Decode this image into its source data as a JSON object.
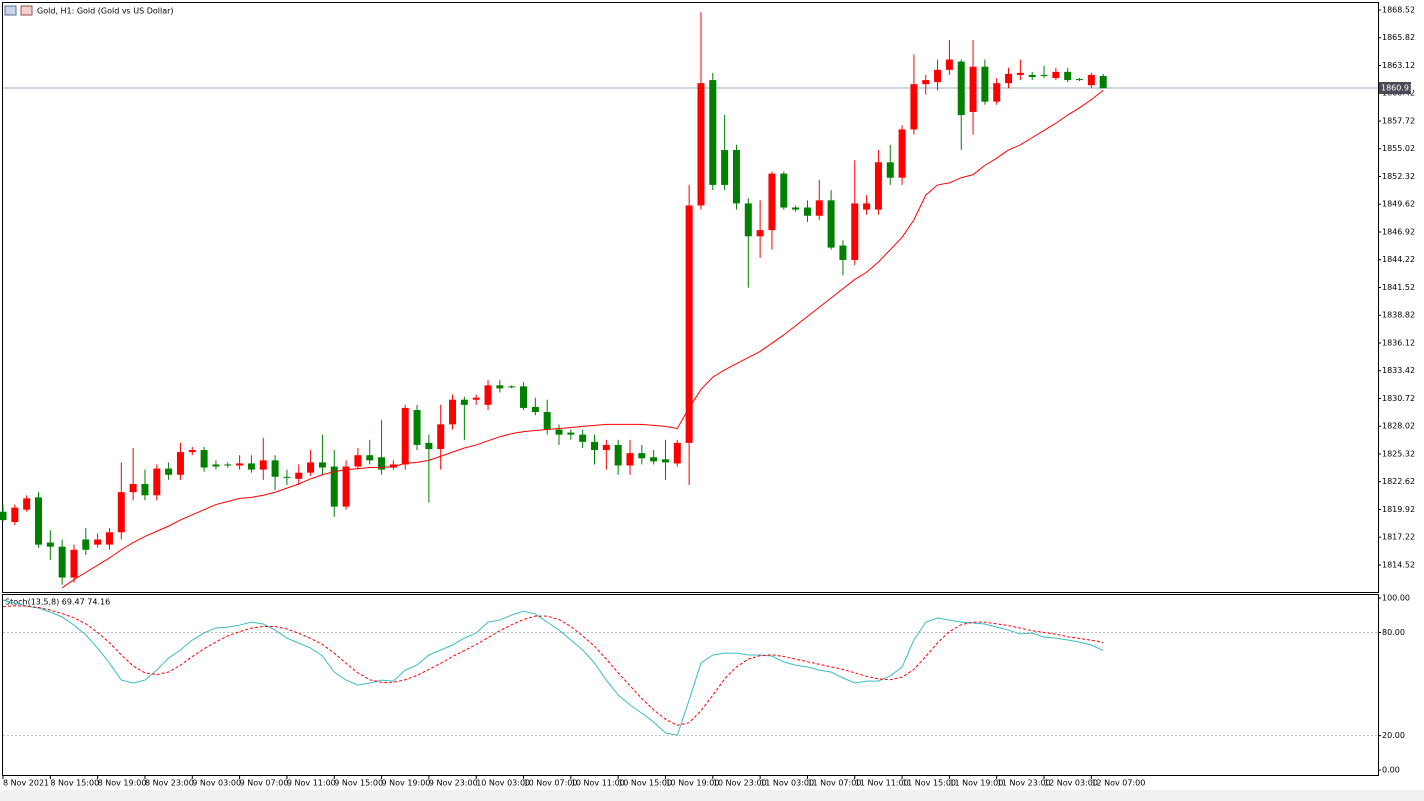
{
  "chart_data": [
    {
      "type": "candlestick",
      "title": "Gold, H1:  Gold (Gold vs US Dollar)",
      "x": [
        "8 Nov 2021",
        null,
        null,
        null,
        "8 Nov 15:00",
        null,
        null,
        null,
        "8 Nov 19:00",
        null,
        null,
        null,
        "8 Nov 23:00",
        null,
        null,
        null,
        "9 Nov 03:00",
        null,
        null,
        null,
        "9 Nov 07:00",
        null,
        null,
        null,
        "9 Nov 11:00",
        null,
        null,
        null,
        "9 Nov 15:00",
        null,
        null,
        null,
        "9 Nov 19:00",
        null,
        null,
        null,
        "9 Nov 23:00",
        null,
        null,
        null,
        "10 Nov 03:00",
        null,
        null,
        null,
        "10 Nov 07:00",
        null,
        null,
        null,
        "10 Nov 11:00",
        null,
        null,
        null,
        "10 Nov 15:00",
        null,
        null,
        null,
        "10 Nov 19:00",
        null,
        null,
        null,
        "10 Nov 23:00",
        null,
        null,
        null,
        "11 Nov 03:00",
        null,
        null,
        null,
        "11 Nov 07:00",
        null,
        null,
        null,
        "11 Nov 11:00",
        null,
        null,
        null,
        "11 Nov 15:00",
        null,
        null,
        null,
        "11 Nov 19:00",
        null,
        null,
        null,
        "11 Nov 23:00",
        null,
        null,
        null,
        "12 Nov 03:00",
        null,
        null,
        null,
        "12 Nov 07:00",
        null
      ],
      "open": [
        1819.7,
        1818.7,
        1819.9,
        1821.1,
        1816.7,
        1816.3,
        1813.3,
        1817.0,
        1816.5,
        1816.5,
        1817.7,
        1821.6,
        1822.4,
        1821.3,
        1823.9,
        1823.3,
        1825.5,
        1825.7,
        1824.3,
        1824.3,
        1824.2,
        1824.4,
        1823.8,
        1824.7,
        1823.1,
        1822.9,
        1823.5,
        1824.5,
        1824.1,
        1820.2,
        1824.1,
        1825.2,
        1825.0,
        1824.0,
        1824.3,
        1829.6,
        1826.4,
        1825.8,
        1828.2,
        1830.6,
        1830.6,
        1830.1,
        1832.0,
        1831.9,
        1831.9,
        1829.9,
        1829.4,
        1827.7,
        1827.4,
        1827.2,
        1826.5,
        1825.7,
        1826.2,
        1824.2,
        1825.4,
        1825.0,
        1824.8,
        1824.4,
        1826.4,
        1849.5,
        1861.7,
        1854.9,
        1854.9,
        1849.7,
        1846.5,
        1847.1,
        1852.6,
        1849.3,
        1849.3,
        1848.5,
        1850.0,
        1845.6,
        1844.2,
        1849.1,
        1849.1,
        1853.7,
        1852.2,
        1856.9,
        1861.3,
        1861.5,
        1862.7,
        1863.5,
        1858.6,
        1863.0,
        1859.6,
        1861.4,
        1862.2,
        1862.2,
        1862.2,
        1861.9,
        1862.5,
        1861.8,
        1861.2,
        1862.1
      ],
      "high": [
        1820.4,
        1820.4,
        1821.3,
        1821.6,
        1817.9,
        1817.0,
        1816.5,
        1818.1,
        1817.6,
        1818.1,
        1824.5,
        1825.9,
        1823.8,
        1824.3,
        1824.5,
        1826.4,
        1826.0,
        1826.0,
        1824.7,
        1824.5,
        1825.2,
        1825.2,
        1826.9,
        1825.2,
        1823.8,
        1824.3,
        1825.7,
        1827.2,
        1825.7,
        1824.7,
        1825.9,
        1826.7,
        1828.6,
        1824.7,
        1830.1,
        1830.1,
        1827.2,
        1830.1,
        1831.1,
        1830.9,
        1831.1,
        1832.5,
        1832.5,
        1832.0,
        1832.3,
        1830.8,
        1830.6,
        1828.2,
        1827.7,
        1827.7,
        1827.2,
        1826.7,
        1826.7,
        1826.7,
        1826.2,
        1825.7,
        1826.7,
        1826.7,
        1851.5,
        1868.3,
        1862.4,
        1858.3,
        1855.4,
        1850.2,
        1850.0,
        1852.8,
        1852.8,
        1849.5,
        1850.0,
        1852.0,
        1851.0,
        1846.1,
        1853.9,
        1850.5,
        1854.9,
        1855.4,
        1857.3,
        1864.2,
        1862.2,
        1863.7,
        1865.6,
        1863.7,
        1865.6,
        1863.7,
        1861.9,
        1862.9,
        1863.7,
        1862.5,
        1863.1,
        1862.9,
        1862.9,
        1861.9,
        1862.4,
        1862.3
      ],
      "low": [
        1818.7,
        1818.4,
        1819.7,
        1816.2,
        1815.0,
        1812.6,
        1812.8,
        1815.5,
        1816.2,
        1816.0,
        1817.0,
        1820.8,
        1820.8,
        1820.8,
        1822.8,
        1822.8,
        1825.2,
        1823.6,
        1823.8,
        1824.0,
        1823.8,
        1823.5,
        1822.8,
        1821.8,
        1822.3,
        1822.3,
        1823.2,
        1823.3,
        1819.2,
        1819.9,
        1823.8,
        1824.3,
        1823.3,
        1823.8,
        1823.8,
        1825.7,
        1820.6,
        1823.8,
        1827.7,
        1826.7,
        1830.1,
        1829.6,
        1831.3,
        1831.7,
        1829.6,
        1829.1,
        1827.2,
        1826.2,
        1826.7,
        1825.9,
        1824.3,
        1823.8,
        1823.3,
        1823.3,
        1824.3,
        1824.3,
        1822.8,
        1824.1,
        1822.3,
        1849.1,
        1851.0,
        1851.0,
        1849.1,
        1841.5,
        1844.4,
        1845.2,
        1849.1,
        1848.9,
        1847.9,
        1848.1,
        1845.2,
        1842.7,
        1843.7,
        1848.6,
        1848.6,
        1851.5,
        1851.5,
        1856.4,
        1860.3,
        1860.7,
        1862.2,
        1854.9,
        1856.4,
        1859.3,
        1859.3,
        1860.9,
        1861.7,
        1861.7,
        1861.9,
        1861.7,
        1861.5,
        1861.6,
        1860.9,
        1860.9
      ],
      "close": [
        1818.9,
        1820.1,
        1821.0,
        1816.5,
        1816.3,
        1813.3,
        1816.0,
        1816.0,
        1817.0,
        1817.7,
        1821.6,
        1822.4,
        1821.3,
        1823.9,
        1823.3,
        1825.5,
        1825.7,
        1824.0,
        1824.1,
        1824.2,
        1824.4,
        1823.8,
        1824.7,
        1823.1,
        1823.0,
        1823.5,
        1824.5,
        1824.0,
        1820.2,
        1824.1,
        1825.2,
        1824.7,
        1823.8,
        1824.3,
        1829.8,
        1826.2,
        1825.8,
        1828.2,
        1830.6,
        1830.1,
        1830.8,
        1832.0,
        1831.7,
        1831.8,
        1829.8,
        1829.4,
        1827.7,
        1827.2,
        1827.2,
        1826.5,
        1825.7,
        1826.2,
        1824.2,
        1825.4,
        1824.9,
        1824.6,
        1824.5,
        1826.4,
        1849.5,
        1861.4,
        1851.5,
        1851.5,
        1849.7,
        1846.5,
        1847.1,
        1852.6,
        1849.3,
        1849.1,
        1848.5,
        1850.0,
        1845.4,
        1844.2,
        1849.7,
        1849.7,
        1853.7,
        1852.2,
        1856.9,
        1861.3,
        1861.7,
        1862.7,
        1863.7,
        1858.3,
        1863.0,
        1859.6,
        1861.4,
        1862.3,
        1862.4,
        1862.0,
        1862.1,
        1862.5,
        1861.7,
        1861.7,
        1862.2,
        1860.9
      ],
      "up_color": "#ff0000",
      "down_color": "#008000",
      "series": [
        {
          "color": "#ff0000",
          "values": [
            null,
            null,
            null,
            null,
            null,
            1812.3,
            1813.1,
            1813.8,
            1814.5,
            1815.2,
            1816.0,
            1816.7,
            1817.3,
            1817.8,
            1818.3,
            1818.9,
            1819.4,
            1819.9,
            1820.4,
            1820.7,
            1821.0,
            1821.1,
            1821.3,
            1821.6,
            1822.0,
            1822.4,
            1822.9,
            1823.3,
            1823.6,
            1823.8,
            1823.9,
            1824.0,
            1824.0,
            1824.1,
            1824.4,
            1824.5,
            1824.7,
            1825.1,
            1825.5,
            1825.9,
            1826.2,
            1826.6,
            1827.0,
            1827.3,
            1827.5,
            1827.6,
            1827.7,
            1827.8,
            1827.9,
            1828.0,
            1828.1,
            1828.2,
            1828.2,
            1828.2,
            1828.2,
            1828.1,
            1828.0,
            1827.8,
            1829.8,
            1831.6,
            1832.8,
            1833.5,
            1834.1,
            1834.7,
            1835.3,
            1836.1,
            1836.9,
            1837.8,
            1838.7,
            1839.6,
            1840.5,
            1841.4,
            1842.3,
            1843.0,
            1844.0,
            1845.2,
            1846.4,
            1848.1,
            1850.5,
            1851.5,
            1851.7,
            1852.2,
            1852.5,
            1853.4,
            1854.1,
            1854.9,
            1855.4,
            1856.1,
            1856.8,
            1857.5,
            1858.3,
            1859.0,
            1859.8,
            1860.7
          ]
        }
      ],
      "last_price": 1860.93,
      "ylim": [
        1811.89,
        1869.2
      ],
      "yticks": [
        1868.52,
        1865.82,
        1863.12,
        1860.42,
        1857.72,
        1855.02,
        1852.32,
        1849.62,
        1846.92,
        1844.22,
        1841.52,
        1838.82,
        1836.12,
        1833.42,
        1830.72,
        1828.02,
        1825.32,
        1822.62,
        1819.92,
        1817.22,
        1814.52
      ]
    },
    {
      "type": "line",
      "indicator_label": "Stoch(13,5,8) 69.47 74.16",
      "series": [
        {
          "color": "#3cbcc8",
          "dashed": false,
          "values": [
            98.8,
            97.1,
            95.3,
            94.2,
            91.9,
            89.0,
            84.3,
            78.5,
            70.9,
            62.2,
            52.3,
            50.6,
            52.3,
            58.1,
            65.1,
            69.8,
            75.6,
            79.7,
            82.6,
            83.1,
            84.3,
            86.0,
            84.9,
            81.4,
            76.7,
            73.8,
            70.9,
            66.3,
            57.0,
            52.3,
            49.4,
            50.6,
            52.3,
            51.7,
            58.1,
            61.0,
            66.9,
            69.8,
            72.7,
            76.7,
            79.7,
            86.0,
            87.2,
            90.1,
            92.4,
            90.7,
            86.0,
            81.4,
            75.6,
            69.8,
            62.2,
            52.3,
            43.6,
            37.8,
            33.1,
            27.9,
            21.5,
            20.3,
            40.7,
            62.2,
            66.9,
            68.0,
            68.0,
            66.9,
            66.9,
            66.3,
            62.8,
            61.0,
            59.9,
            58.1,
            57.0,
            53.5,
            50.6,
            51.7,
            51.7,
            54.7,
            59.9,
            75.6,
            86.0,
            88.4,
            87.2,
            86.0,
            85.5,
            84.9,
            83.1,
            81.4,
            79.1,
            79.7,
            77.3,
            76.7,
            75.6,
            74.4,
            72.7,
            69.47
          ]
        },
        {
          "color": "#ff0000",
          "dashed": true,
          "values": [
            95.0,
            95.5,
            95.3,
            94.5,
            93.0,
            91.0,
            88.5,
            85.0,
            80.0,
            74.0,
            67.0,
            60.5,
            56.5,
            55.5,
            57.0,
            61.0,
            66.0,
            70.5,
            74.5,
            78.0,
            80.5,
            82.5,
            83.5,
            83.5,
            82.0,
            79.5,
            76.5,
            73.0,
            68.0,
            62.0,
            56.5,
            52.5,
            51.0,
            51.0,
            52.5,
            55.0,
            58.5,
            62.0,
            66.0,
            69.5,
            73.0,
            77.0,
            81.0,
            84.5,
            87.5,
            89.5,
            89.5,
            87.5,
            83.5,
            78.0,
            72.0,
            64.5,
            56.5,
            49.0,
            41.5,
            35.0,
            29.5,
            26.0,
            27.5,
            34.5,
            43.5,
            53.0,
            60.0,
            64.5,
            66.5,
            67.0,
            66.0,
            64.5,
            63.0,
            61.5,
            60.0,
            58.5,
            56.5,
            54.5,
            53.0,
            52.5,
            54.0,
            58.5,
            66.0,
            74.0,
            80.5,
            84.5,
            86.0,
            86.0,
            85.0,
            84.0,
            82.5,
            81.0,
            80.0,
            79.0,
            77.5,
            76.5,
            75.5,
            74.16
          ]
        }
      ],
      "levels": [
        80,
        20
      ],
      "ylim": [
        -2.9,
        101.2
      ],
      "yticks": [
        {
          "value": 100,
          "label": "100.00"
        },
        {
          "value": 80,
          "label": "80.00"
        },
        {
          "value": 20,
          "label": "20.00"
        },
        {
          "value": 0,
          "label": "0.00"
        }
      ]
    }
  ]
}
